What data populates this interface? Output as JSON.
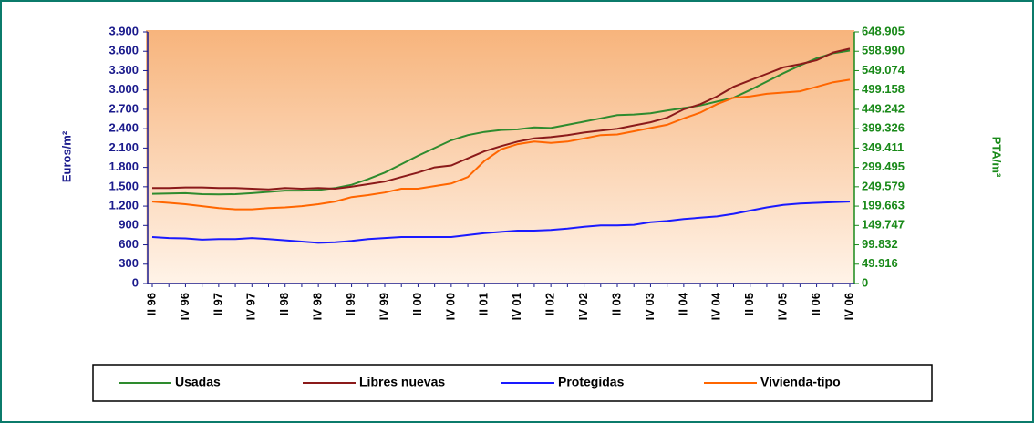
{
  "chart_data": {
    "type": "line",
    "y_label": "Euros/m²",
    "y2_label": "PTA/m²",
    "categories": [
      "II 96",
      null,
      "IV 96",
      null,
      "II 97",
      null,
      "IV 97",
      null,
      "II 98",
      null,
      "IV 98",
      null,
      "II 99",
      null,
      "IV 99",
      null,
      "II 00",
      null,
      "IV 00",
      null,
      "II 01",
      null,
      "IV 01",
      null,
      "II 02",
      null,
      "IV 02",
      null,
      "II 03",
      null,
      "IV 03",
      null,
      "II 04",
      null,
      "IV 04",
      null,
      "II 05",
      null,
      "IV 05",
      null,
      "II 06",
      null,
      "IV 06"
    ],
    "series": [
      {
        "name": "Usadas",
        "color": "#2e8b2e",
        "values": [
          1390,
          1395,
          1400,
          1385,
          1380,
          1385,
          1400,
          1420,
          1440,
          1440,
          1450,
          1480,
          1530,
          1620,
          1720,
          1850,
          1980,
          2100,
          2220,
          2300,
          2350,
          2380,
          2390,
          2420,
          2410,
          2460,
          2510,
          2560,
          2610,
          2620,
          2640,
          2680,
          2720,
          2760,
          2820,
          2880,
          3000,
          3130,
          3260,
          3380,
          3490,
          3570,
          3610
        ]
      },
      {
        "name": "Libres nuevas",
        "color": "#8b1a1a",
        "values": [
          1480,
          1480,
          1490,
          1490,
          1480,
          1480,
          1470,
          1460,
          1480,
          1470,
          1480,
          1470,
          1500,
          1540,
          1580,
          1650,
          1720,
          1800,
          1830,
          1940,
          2050,
          2130,
          2200,
          2250,
          2270,
          2300,
          2340,
          2370,
          2400,
          2450,
          2500,
          2570,
          2700,
          2780,
          2900,
          3050,
          3150,
          3250,
          3350,
          3400,
          3460,
          3580,
          3640
        ]
      },
      {
        "name": "Protegidas",
        "color": "#1a1aff",
        "values": [
          720,
          705,
          700,
          680,
          690,
          690,
          705,
          690,
          670,
          650,
          630,
          640,
          660,
          690,
          705,
          720,
          720,
          720,
          720,
          750,
          780,
          800,
          820,
          820,
          830,
          850,
          880,
          900,
          900,
          910,
          950,
          970,
          1000,
          1020,
          1040,
          1080,
          1130,
          1180,
          1220,
          1240,
          1250,
          1260,
          1270
        ]
      },
      {
        "name": "Vivienda-tipo",
        "color": "#ff6600",
        "values": [
          1270,
          1250,
          1230,
          1200,
          1170,
          1150,
          1150,
          1170,
          1180,
          1200,
          1230,
          1270,
          1340,
          1370,
          1410,
          1470,
          1470,
          1510,
          1550,
          1650,
          1900,
          2080,
          2160,
          2200,
          2180,
          2200,
          2250,
          2300,
          2310,
          2360,
          2410,
          2460,
          2560,
          2650,
          2780,
          2880,
          2900,
          2940,
          2960,
          2980,
          3050,
          3120,
          3160
        ]
      }
    ],
    "ylim": [
      0,
      3900
    ],
    "yticks": [
      0,
      300,
      600,
      900,
      {
        "value": 1200,
        "label": "1.200"
      },
      {
        "value": 1500,
        "label": "1.500"
      },
      {
        "value": 1800,
        "label": "1.800"
      },
      {
        "value": 2100,
        "label": "2.100"
      },
      {
        "value": 2400,
        "label": "2.400"
      },
      {
        "value": 2700,
        "label": "2.700"
      },
      {
        "value": 3000,
        "label": "3.000"
      },
      {
        "value": 3300,
        "label": "3.300"
      },
      {
        "value": 3600,
        "label": "3.600"
      },
      {
        "value": 3900,
        "label": "3.900"
      }
    ],
    "y2lim": [
      0,
      648905
    ],
    "y2ticks": [
      0,
      {
        "value": 49916,
        "label": "49.916"
      },
      {
        "value": 99832,
        "label": "99.832"
      },
      {
        "value": 149747,
        "label": "149.747"
      },
      {
        "value": 199663,
        "label": "199.663"
      },
      {
        "value": 249579,
        "label": "249.579"
      },
      {
        "value": 299495,
        "label": "299.495"
      },
      {
        "value": 349411,
        "label": "349.411"
      },
      {
        "value": 399326,
        "label": "399.326"
      },
      {
        "value": 449242,
        "label": "449.242"
      },
      {
        "value": 499158,
        "label": "499.158"
      },
      {
        "value": 549074,
        "label": "549.074"
      },
      {
        "value": 598990,
        "label": "598.990"
      },
      {
        "value": 648905,
        "label": "648.905"
      }
    ],
    "legend": "bottom"
  }
}
